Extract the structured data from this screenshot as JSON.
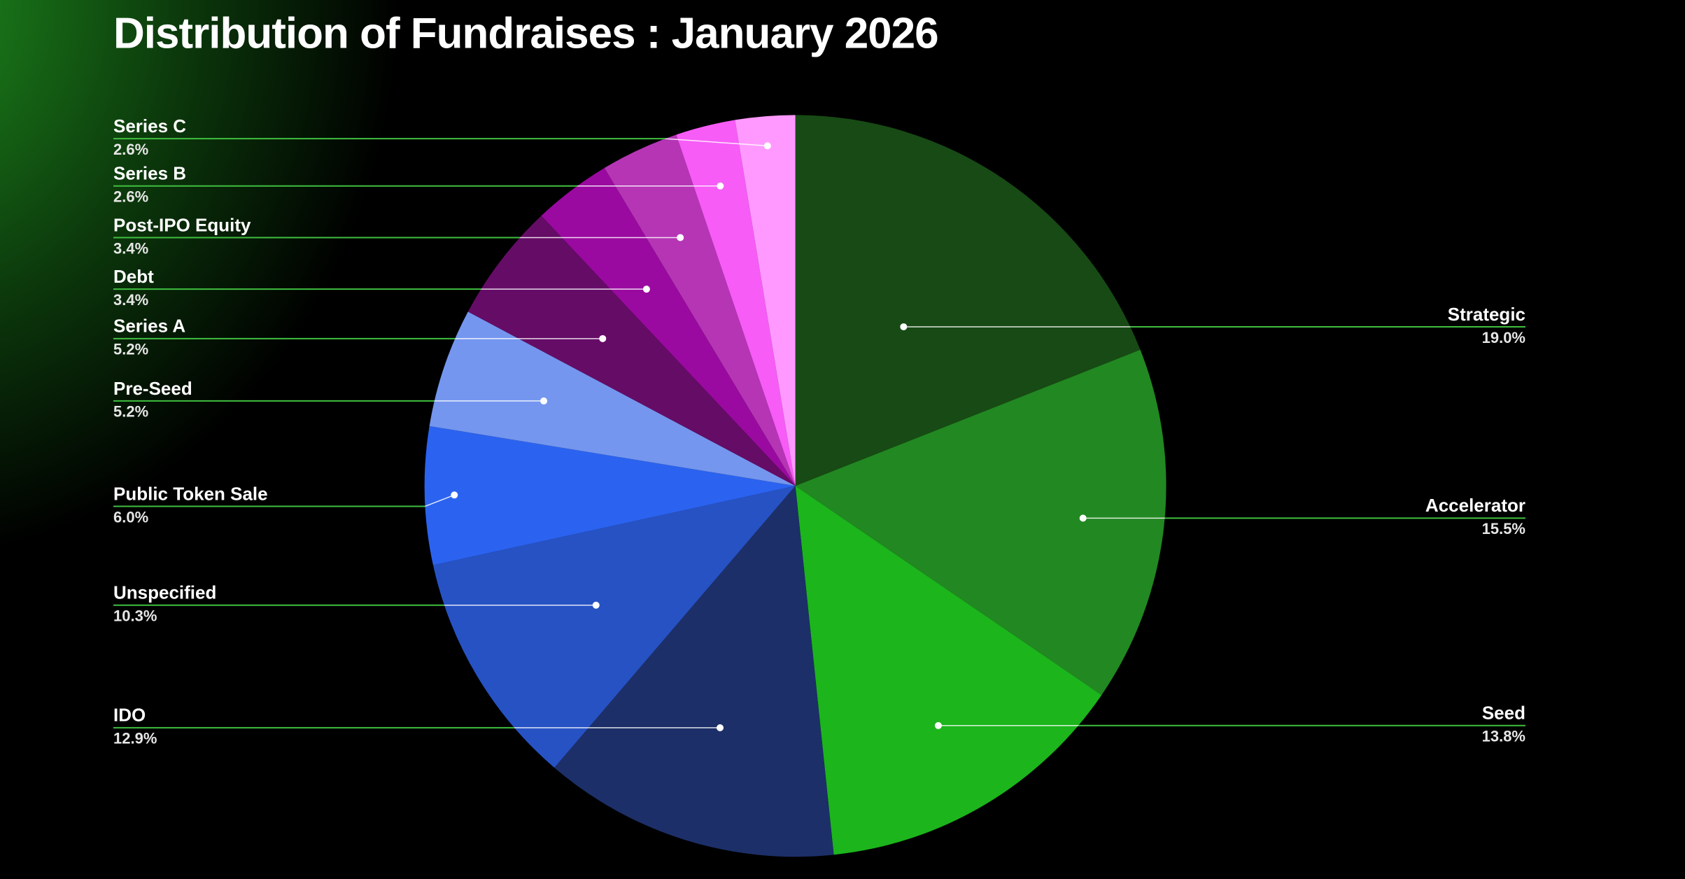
{
  "chart_data": {
    "type": "pie",
    "title": "Distribution of Fundraises : January  2026",
    "categories": [
      "Strategic",
      "Accelerator",
      "Seed",
      "IDO",
      "Unspecified",
      "Public Token Sale",
      "Pre-Seed",
      "Series A",
      "Debt",
      "Post-IPO Equity",
      "Series B",
      "Series C"
    ],
    "values": [
      19.0,
      15.5,
      13.8,
      12.9,
      10.3,
      6.0,
      5.2,
      5.2,
      3.4,
      3.4,
      2.6,
      2.6
    ],
    "value_labels": [
      "19.0%",
      "15.5%",
      "13.8%",
      "12.9%",
      "10.3%",
      "6.0%",
      "5.2%",
      "5.2%",
      "3.4%",
      "3.4%",
      "2.6%",
      "2.6%"
    ],
    "colors": [
      "#174a14",
      "#228822",
      "#1cb51c",
      "#1c2f68",
      "#2752c4",
      "#2b63f0",
      "#7496ef",
      "#650c66",
      "#9a0aa0",
      "#b535b5",
      "#f75cf7",
      "#ff99ff"
    ]
  }
}
